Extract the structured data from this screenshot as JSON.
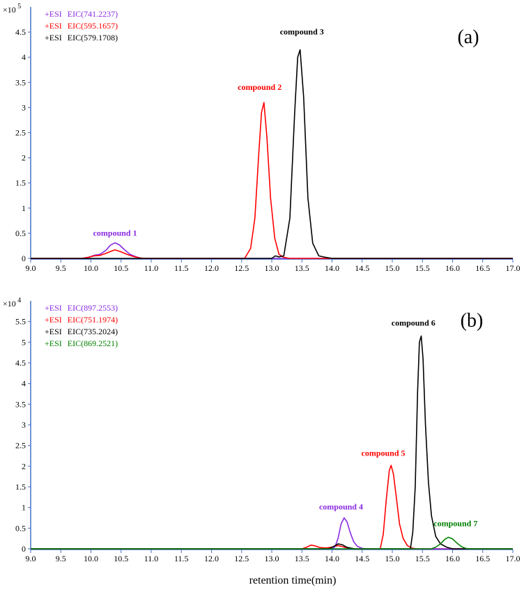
{
  "chart_data": [
    {
      "type": "line",
      "panel_tag": "(a)",
      "x_ticks": [
        9.0,
        9.5,
        10.0,
        10.5,
        11.0,
        11.5,
        12.0,
        12.5,
        13.0,
        13.5,
        14.0,
        14.5,
        15.0,
        15.5,
        16.0,
        16.5,
        17.0
      ],
      "xlim": [
        9.0,
        17.0
      ],
      "y_scale": {
        "base": "×10",
        "exponent": "5"
      },
      "y_ticks": [
        0,
        0.5,
        1,
        1.5,
        2,
        2.5,
        3,
        3.5,
        4,
        4.5
      ],
      "ylim": [
        0,
        5
      ],
      "legend": [
        {
          "polarity": "+ESI",
          "label": "EIC(741.2237)",
          "color": "#8a2be2"
        },
        {
          "polarity": "+ESI",
          "label": "EIC(595.1657)",
          "color": "#ff0000"
        },
        {
          "polarity": "+ESI",
          "label": "EIC(579.1708)",
          "color": "#000000"
        }
      ],
      "series": [
        {
          "color": "#8a2be2",
          "x": [
            9.0,
            9.85,
            9.95,
            10.05,
            10.15,
            10.25,
            10.32,
            10.4,
            10.47,
            10.55,
            10.65,
            10.75,
            10.85,
            10.95,
            17.0
          ],
          "y": [
            0,
            0,
            0.02,
            0.06,
            0.08,
            0.16,
            0.26,
            0.31,
            0.27,
            0.18,
            0.08,
            0.03,
            0,
            0,
            0
          ]
        },
        {
          "color": "#ff0000",
          "x": [
            9.0,
            9.85,
            9.95,
            10.05,
            10.15,
            10.25,
            10.33,
            10.4,
            10.5,
            10.6,
            10.7,
            10.8,
            10.9,
            12.55,
            12.65,
            12.72,
            12.78,
            12.83,
            12.87,
            12.92,
            12.98,
            13.05,
            13.12,
            13.2,
            13.3,
            17.0
          ],
          "y": [
            0,
            0,
            0.02,
            0.05,
            0.06,
            0.1,
            0.14,
            0.17,
            0.13,
            0.08,
            0.04,
            0.01,
            0,
            0,
            0.2,
            0.8,
            2.0,
            2.9,
            3.1,
            2.4,
            1.2,
            0.4,
            0.08,
            0.02,
            0,
            0
          ]
        },
        {
          "color": "#000000",
          "x": [
            9.0,
            13.0,
            13.06,
            13.12,
            13.2,
            13.3,
            13.38,
            13.43,
            13.47,
            13.53,
            13.6,
            13.68,
            13.78,
            13.9,
            14.0,
            17.0
          ],
          "y": [
            0,
            0,
            0.05,
            0.03,
            0.05,
            0.8,
            2.9,
            4.0,
            4.15,
            3.2,
            1.2,
            0.3,
            0.05,
            0.02,
            0,
            0
          ]
        }
      ],
      "annotations": [
        {
          "text": "compound 1",
          "x": 10.4,
          "y": 0.45,
          "color": "#8a2be2"
        },
        {
          "text": "compound 2",
          "x": 12.8,
          "y": 3.35,
          "color": "#ff0000"
        },
        {
          "text": "compound 3",
          "x": 13.5,
          "y": 4.45,
          "color": "#000000"
        }
      ]
    },
    {
      "type": "line",
      "panel_tag": "(b)",
      "x_ticks": [
        9.0,
        9.5,
        10.0,
        10.5,
        11.0,
        11.5,
        12.0,
        12.5,
        13.0,
        13.5,
        14.0,
        14.5,
        15.0,
        15.5,
        16.0,
        16.5,
        17.0
      ],
      "xlim": [
        9.0,
        17.0
      ],
      "xlabel": "retention time(min)",
      "y_scale": {
        "base": "×10",
        "exponent": "4"
      },
      "y_ticks": [
        0,
        0.5,
        1,
        1.5,
        2,
        2.5,
        3,
        3.5,
        4,
        4.5,
        5,
        5.5
      ],
      "ylim": [
        0,
        6
      ],
      "legend": [
        {
          "polarity": "+ESI",
          "label": "EIC(897.2553)",
          "color": "#8a2be2"
        },
        {
          "polarity": "+ESI",
          "label": "EIC(751.1974)",
          "color": "#ff0000"
        },
        {
          "polarity": "+ESI",
          "label": "EIC(735.2024)",
          "color": "#000000"
        },
        {
          "polarity": "+ESI",
          "label": "EIC(869.2521)",
          "color": "#008000"
        }
      ],
      "series": [
        {
          "color": "#ff0000",
          "x": [
            9.0,
            13.5,
            13.58,
            13.65,
            13.72,
            13.8,
            13.9,
            14.0,
            14.1,
            14.18,
            14.25,
            14.35,
            14.8,
            14.85,
            14.9,
            14.95,
            14.98,
            15.02,
            15.07,
            15.12,
            15.18,
            15.25,
            15.32,
            15.4,
            17.0
          ],
          "y": [
            0,
            0,
            0.04,
            0.09,
            0.07,
            0.03,
            0.02,
            0.04,
            0.08,
            0.05,
            0.02,
            0,
            0,
            0.35,
            1.2,
            1.9,
            2.02,
            1.8,
            1.2,
            0.6,
            0.25,
            0.08,
            0.02,
            0,
            0
          ]
        },
        {
          "color": "#8a2be2",
          "x": [
            9.0,
            14.0,
            14.05,
            14.1,
            14.15,
            14.2,
            14.25,
            14.3,
            14.36,
            14.42,
            14.5,
            14.6,
            17.0
          ],
          "y": [
            0,
            0,
            0.05,
            0.25,
            0.6,
            0.75,
            0.65,
            0.4,
            0.17,
            0.06,
            0.01,
            0,
            0
          ]
        },
        {
          "color": "#000000",
          "x": [
            9.0,
            13.95,
            14.03,
            14.1,
            14.17,
            14.24,
            14.3,
            14.38,
            15.3,
            15.34,
            15.38,
            15.42,
            15.45,
            15.48,
            15.51,
            15.55,
            15.6,
            15.65,
            15.72,
            15.8,
            15.9,
            16.0,
            17.0
          ],
          "y": [
            0,
            0,
            0.06,
            0.12,
            0.1,
            0.04,
            0.02,
            0,
            0,
            0.4,
            1.5,
            3.8,
            5.0,
            5.15,
            4.6,
            3.0,
            1.6,
            0.8,
            0.3,
            0.12,
            0.04,
            0,
            0
          ]
        },
        {
          "color": "#008000",
          "x": [
            9.0,
            15.65,
            15.72,
            15.8,
            15.87,
            15.93,
            16.0,
            16.08,
            16.15,
            16.22,
            16.3,
            17.0
          ],
          "y": [
            0,
            0,
            0.04,
            0.12,
            0.23,
            0.28,
            0.24,
            0.13,
            0.05,
            0.01,
            0,
            0
          ]
        }
      ],
      "annotations": [
        {
          "text": "compound 4",
          "x": 14.15,
          "y": 0.95,
          "color": "#8a2be2"
        },
        {
          "text": "compound 5",
          "x": 14.85,
          "y": 2.25,
          "color": "#ff0000"
        },
        {
          "text": "compound 6",
          "x": 15.35,
          "y": 5.4,
          "color": "#000000"
        },
        {
          "text": "compound 7",
          "x": 16.05,
          "y": 0.55,
          "color": "#008000"
        }
      ]
    }
  ]
}
